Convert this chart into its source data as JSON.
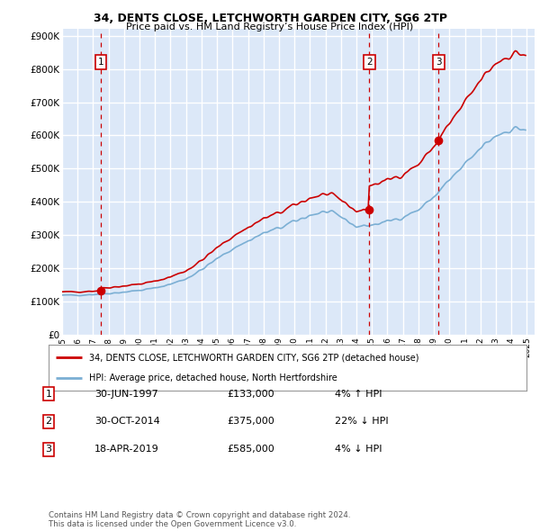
{
  "title1": "34, DENTS CLOSE, LETCHWORTH GARDEN CITY, SG6 2TP",
  "title2": "Price paid vs. HM Land Registry’s House Price Index (HPI)",
  "plot_bg_color": "#dce8f8",
  "grid_color": "#ffffff",
  "yticks": [
    0,
    100000,
    200000,
    300000,
    400000,
    500000,
    600000,
    700000,
    800000,
    900000
  ],
  "ytick_labels": [
    "£0",
    "£100K",
    "£200K",
    "£300K",
    "£400K",
    "£500K",
    "£600K",
    "£700K",
    "£800K",
    "£900K"
  ],
  "ylim": [
    0,
    920000
  ],
  "sale_dates": [
    "1997-06-30",
    "2014-10-30",
    "2019-04-18"
  ],
  "sale_prices": [
    133000,
    375000,
    585000
  ],
  "sale_labels": [
    "1",
    "2",
    "3"
  ],
  "legend_line1": "34, DENTS CLOSE, LETCHWORTH GARDEN CITY, SG6 2TP (detached house)",
  "legend_line2": "HPI: Average price, detached house, North Hertfordshire",
  "table_rows": [
    [
      "1",
      "30-JUN-1997",
      "£133,000",
      "4% ↑ HPI"
    ],
    [
      "2",
      "30-OCT-2014",
      "£375,000",
      "22% ↓ HPI"
    ],
    [
      "3",
      "18-APR-2019",
      "£585,000",
      "4% ↓ HPI"
    ]
  ],
  "footer": "Contains HM Land Registry data © Crown copyright and database right 2024.\nThis data is licensed under the Open Government Licence v3.0.",
  "hpi_color": "#7bafd4",
  "sale_line_color": "#cc0000",
  "sale_dot_color": "#cc0000",
  "vline_color": "#cc0000",
  "label_box_color": "#cc0000"
}
